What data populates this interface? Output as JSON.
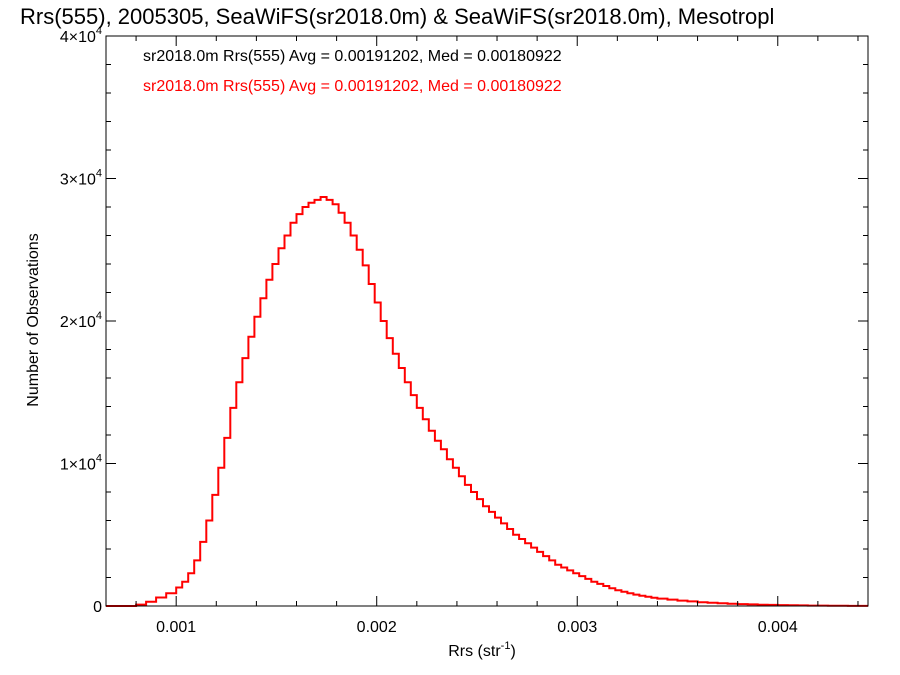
{
  "chart_data": {
    "type": "line",
    "step": true,
    "title": "Rrs(555), 2005305, SeaWiFS(sr2018.0m) & SeaWiFS(sr2018.0m), Mesotropl",
    "xlabel": {
      "base": "Rrs (str",
      "sup": "-1",
      "suffix": ")"
    },
    "ylabel": "Number of Observations",
    "xlim": [
      0.00065,
      0.00445
    ],
    "ylim": [
      0,
      40000
    ],
    "x_ticks": [
      {
        "value": 0.001,
        "label": "0.001"
      },
      {
        "value": 0.002,
        "label": "0.002"
      },
      {
        "value": 0.003,
        "label": "0.003"
      },
      {
        "value": 0.004,
        "label": "0.004"
      }
    ],
    "y_ticks": [
      {
        "value": 0,
        "mant": "0",
        "exp": ""
      },
      {
        "value": 10000,
        "mant": "1×10",
        "exp": "4"
      },
      {
        "value": 20000,
        "mant": "2×10",
        "exp": "4"
      },
      {
        "value": 30000,
        "mant": "3×10",
        "exp": "4"
      },
      {
        "value": 40000,
        "mant": "4×10",
        "exp": "4"
      }
    ],
    "legend": {
      "placement": "top-left",
      "entries": [
        {
          "text": "sr2018.0m Rrs(555) Avg = 0.00191202, Med = 0.00180922",
          "color": "#000000"
        },
        {
          "text": "sr2018.0m Rrs(555) Avg = 0.00191202, Med = 0.00180922",
          "color": "#ff0000"
        }
      ]
    },
    "series": [
      {
        "color": "#ff0000",
        "points": [
          [
            0.00065,
            0
          ],
          [
            0.0008,
            0
          ],
          [
            0.0008,
            100
          ],
          [
            0.00085,
            300
          ],
          [
            0.0009,
            600
          ],
          [
            0.00095,
            900
          ],
          [
            0.001,
            1300
          ],
          [
            0.00103,
            1700
          ],
          [
            0.00106,
            2300
          ],
          [
            0.00109,
            3200
          ],
          [
            0.00112,
            4500
          ],
          [
            0.00115,
            6000
          ],
          [
            0.00118,
            7800
          ],
          [
            0.00121,
            9700
          ],
          [
            0.00124,
            11800
          ],
          [
            0.00127,
            13900
          ],
          [
            0.0013,
            15700
          ],
          [
            0.00133,
            17400
          ],
          [
            0.00136,
            18900
          ],
          [
            0.00139,
            20300
          ],
          [
            0.00142,
            21600
          ],
          [
            0.00145,
            22900
          ],
          [
            0.00148,
            24000
          ],
          [
            0.00151,
            25100
          ],
          [
            0.00154,
            26000
          ],
          [
            0.00157,
            26900
          ],
          [
            0.0016,
            27500
          ],
          [
            0.00163,
            28000
          ],
          [
            0.00166,
            28300
          ],
          [
            0.00169,
            28500
          ],
          [
            0.00172,
            28700
          ],
          [
            0.00175,
            28500
          ],
          [
            0.00178,
            28200
          ],
          [
            0.00181,
            27600
          ],
          [
            0.00184,
            26900
          ],
          [
            0.00187,
            26000
          ],
          [
            0.0019,
            25000
          ],
          [
            0.00193,
            23900
          ],
          [
            0.00196,
            22600
          ],
          [
            0.00199,
            21300
          ],
          [
            0.00202,
            20000
          ],
          [
            0.00205,
            18800
          ],
          [
            0.00208,
            17700
          ],
          [
            0.00211,
            16700
          ],
          [
            0.00214,
            15700
          ],
          [
            0.00217,
            14800
          ],
          [
            0.0022,
            13900
          ],
          [
            0.00223,
            13100
          ],
          [
            0.00226,
            12300
          ],
          [
            0.00229,
            11600
          ],
          [
            0.00232,
            11000
          ],
          [
            0.00235,
            10300
          ],
          [
            0.00238,
            9700
          ],
          [
            0.00241,
            9100
          ],
          [
            0.00244,
            8500
          ],
          [
            0.00247,
            8000
          ],
          [
            0.0025,
            7500
          ],
          [
            0.00253,
            7000
          ],
          [
            0.00256,
            6600
          ],
          [
            0.00259,
            6200
          ],
          [
            0.00262,
            5800
          ],
          [
            0.00265,
            5400
          ],
          [
            0.00268,
            5000
          ],
          [
            0.00271,
            4700
          ],
          [
            0.00274,
            4400
          ],
          [
            0.00277,
            4100
          ],
          [
            0.0028,
            3800
          ],
          [
            0.00283,
            3500
          ],
          [
            0.00286,
            3200
          ],
          [
            0.00289,
            2900
          ],
          [
            0.00292,
            2700
          ],
          [
            0.00295,
            2500
          ],
          [
            0.00298,
            2300
          ],
          [
            0.00301,
            2100
          ],
          [
            0.00304,
            1900
          ],
          [
            0.00307,
            1700
          ],
          [
            0.0031,
            1550
          ],
          [
            0.00313,
            1400
          ],
          [
            0.00316,
            1250
          ],
          [
            0.00319,
            1100
          ],
          [
            0.00322,
            1000
          ],
          [
            0.00325,
            900
          ],
          [
            0.00328,
            800
          ],
          [
            0.00331,
            720
          ],
          [
            0.00334,
            650
          ],
          [
            0.00337,
            580
          ],
          [
            0.0034,
            520
          ],
          [
            0.00345,
            450
          ],
          [
            0.0035,
            380
          ],
          [
            0.00355,
            320
          ],
          [
            0.0036,
            270
          ],
          [
            0.00365,
            230
          ],
          [
            0.0037,
            190
          ],
          [
            0.00375,
            160
          ],
          [
            0.0038,
            130
          ],
          [
            0.00385,
            110
          ],
          [
            0.0039,
            90
          ],
          [
            0.00395,
            75
          ],
          [
            0.004,
            60
          ],
          [
            0.00405,
            50
          ],
          [
            0.0041,
            40
          ],
          [
            0.00415,
            30
          ],
          [
            0.0042,
            25
          ],
          [
            0.00425,
            20
          ],
          [
            0.0043,
            15
          ],
          [
            0.00435,
            10
          ],
          [
            0.0044,
            8
          ],
          [
            0.00445,
            5
          ]
        ]
      }
    ]
  }
}
